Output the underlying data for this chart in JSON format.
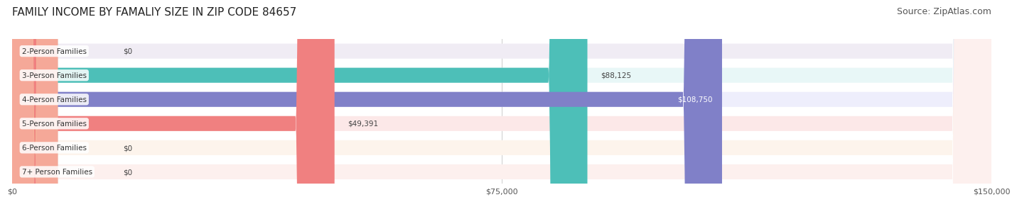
{
  "title": "FAMILY INCOME BY FAMALIY SIZE IN ZIP CODE 84657",
  "source": "Source: ZipAtlas.com",
  "categories": [
    "2-Person Families",
    "3-Person Families",
    "4-Person Families",
    "5-Person Families",
    "6-Person Families",
    "7+ Person Families"
  ],
  "values": [
    0,
    88125,
    108750,
    49391,
    0,
    0
  ],
  "bar_colors": [
    "#c9afd4",
    "#4dbfb8",
    "#8080c8",
    "#f08080",
    "#f5c89a",
    "#f5a898"
  ],
  "bg_colors": [
    "#f0ecf4",
    "#e8f7f7",
    "#eeeefc",
    "#fce8e8",
    "#fdf4ec",
    "#fdf0ee"
  ],
  "value_labels": [
    "$0",
    "$88,125",
    "$108,750",
    "$49,391",
    "$0",
    "$0"
  ],
  "label_inside": [
    false,
    false,
    true,
    false,
    false,
    false
  ],
  "xlim": [
    0,
    150000
  ],
  "xticks": [
    0,
    75000,
    150000
  ],
  "xticklabels": [
    "$0",
    "$75,000",
    "$150,000"
  ],
  "background_color": "#ffffff",
  "title_fontsize": 11,
  "source_fontsize": 9
}
